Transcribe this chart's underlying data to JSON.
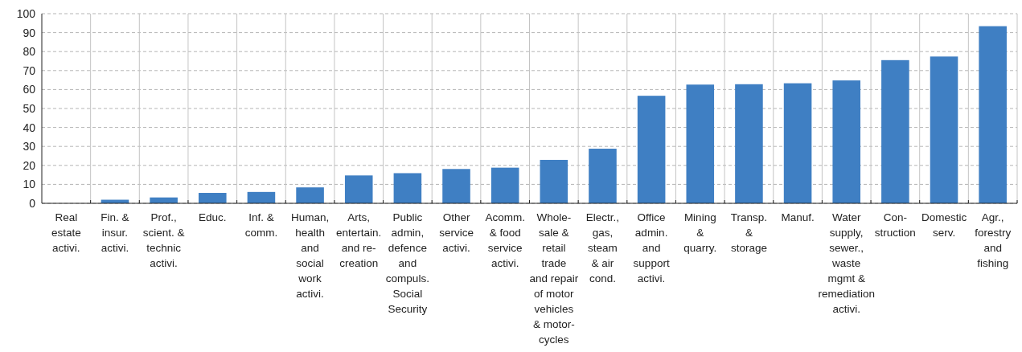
{
  "chart_data": {
    "type": "bar",
    "categories": [
      "Real\nestate\nactivi.",
      "Fin. &\ninsur.\nactivi.",
      "Prof.,\nscient. &\ntechnic\nactivi.",
      "Educ.",
      "Inf. &\ncomm.",
      "Human,\nhealth\nand\nsocial\nwork\nactivi.",
      "Arts,\nentertain.\nand re-\ncreation",
      "Public\nadmin,\ndefence\nand\ncompuls.\nSocial\nSecurity",
      "Other\nservice\nactivi.",
      "Acomm.\n& food\nservice\nactivi.",
      "Whole-\nsale &\nretail\ntrade\nand repair\nof motor\nvehicles\n& motor-\ncycles",
      "Electr.,\ngas,\nsteam\n& air\ncond.",
      "Office\nadmin.\nand\nsupport\nactivi.",
      "Mining\n&\nquarry.",
      "Transp.\n&\nstorage",
      "Manuf.",
      "Water\nsupply,\nsewer.,\nwaste\nmgmt &\nremediation\nactivi.",
      "Con-\nstruction",
      "Domestic\nserv.",
      "Agr.,\nforestry\nand\nfishing"
    ],
    "values": [
      0,
      1.9,
      3.1,
      5.5,
      6.0,
      8.4,
      14.7,
      15.9,
      18.1,
      18.8,
      22.9,
      28.8,
      56.7,
      62.6,
      62.8,
      63.3,
      64.8,
      75.5,
      77.4,
      93.4
    ],
    "color": "#3f7fc3",
    "ylim": [
      0,
      100
    ],
    "yticks": [
      0,
      10,
      20,
      30,
      40,
      50,
      60,
      70,
      80,
      90,
      100
    ],
    "grid": true
  }
}
